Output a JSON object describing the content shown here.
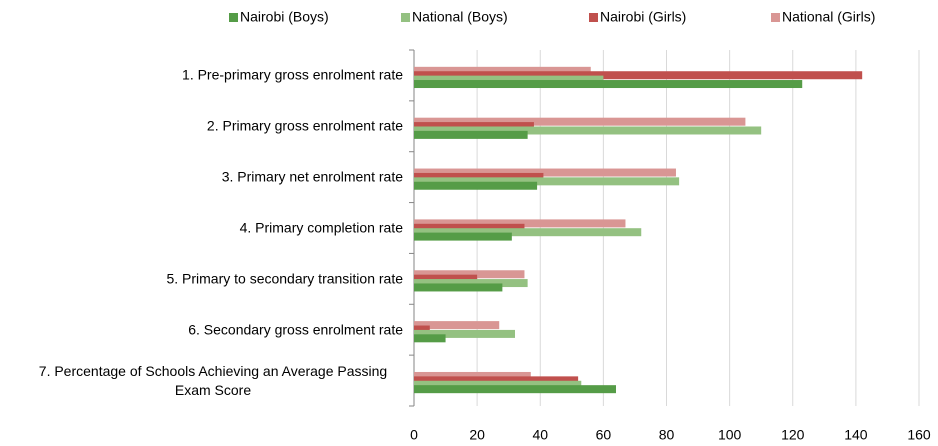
{
  "chart_data": {
    "type": "hbar",
    "categories": [
      "1. Pre-primary gross enrolment rate",
      "2. Primary gross enrolment rate",
      "3. Primary net enrolment rate",
      "4. Primary completion rate",
      "5. Primary to secondary transition rate",
      "6. Secondary gross enrolment rate",
      "7. Percentage of Schools Achieving an Average Passing Exam Score"
    ],
    "series": [
      {
        "name": "Nairobi (Boys)",
        "color": "#559c47",
        "values": [
          123,
          36,
          39,
          31,
          28,
          10,
          64
        ]
      },
      {
        "name": "National (Boys)",
        "color": "#94c181",
        "values": [
          60,
          110,
          84,
          72,
          36,
          32,
          53
        ]
      },
      {
        "name": "Nairobi (Girls)",
        "color": "#c0504d",
        "values": [
          142,
          38,
          41,
          35,
          20,
          5,
          52
        ]
      },
      {
        "name": "National (Girls)",
        "color": "#d99694",
        "values": [
          56,
          105,
          83,
          67,
          35,
          27,
          37
        ]
      }
    ],
    "xlim": [
      0,
      160
    ],
    "xticks": [
      0,
      20,
      40,
      60,
      80,
      100,
      120,
      140,
      160
    ],
    "grid": true,
    "legend": "top"
  }
}
